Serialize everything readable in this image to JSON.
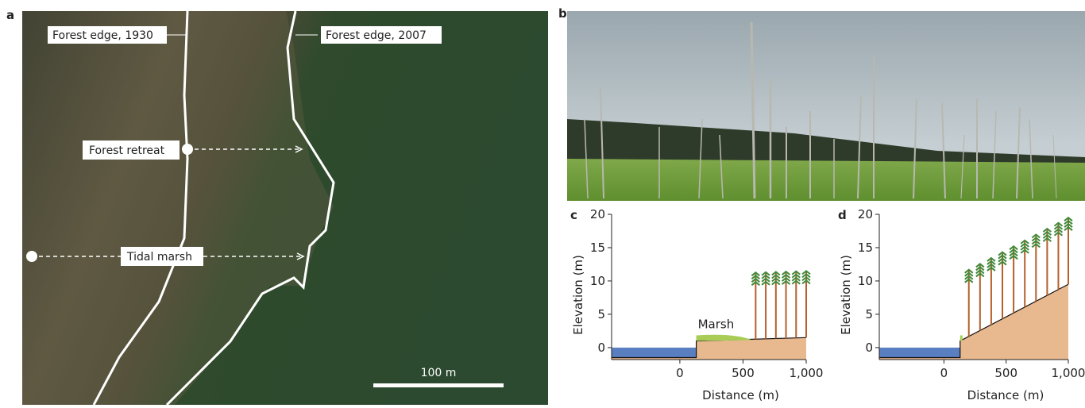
{
  "panels": {
    "a": {
      "letter": "a",
      "labels": {
        "edge_1930": "Forest edge, 1930",
        "edge_2007": "Forest edge, 2007",
        "retreat": "Forest retreat",
        "marsh": "Tidal marsh",
        "scale": "100 m"
      }
    },
    "b": {
      "letter": "b"
    }
  },
  "chart_data": [
    {
      "type": "area",
      "letter": "c",
      "x_label": "Distance (m)",
      "y_label": "Elevation (m)",
      "annotation": "Marsh",
      "x": [
        -540,
        130,
        130,
        1000
      ],
      "values": [
        -1.5,
        -1.5,
        1,
        1.5
      ],
      "xlim": [
        -540,
        1000
      ],
      "ylim": [
        -1.8,
        20
      ],
      "xticks": [
        0,
        500,
        {
          "value": 1000,
          "label": "1,000"
        }
      ],
      "yticks": [
        0,
        5,
        10,
        15,
        20
      ]
    },
    {
      "type": "area",
      "letter": "d",
      "x_label": "Distance (m)",
      "y_label": "Elevation (m)",
      "x": [
        -520,
        130,
        130,
        1000
      ],
      "values": [
        -1.5,
        -1.5,
        1,
        9.5
      ],
      "xlim": [
        -520,
        1000
      ],
      "ylim": [
        -1.8,
        20
      ],
      "xticks": [
        0,
        500,
        {
          "value": 1000,
          "label": "1,000"
        }
      ],
      "yticks": [
        0,
        5,
        10,
        15,
        20
      ]
    }
  ]
}
